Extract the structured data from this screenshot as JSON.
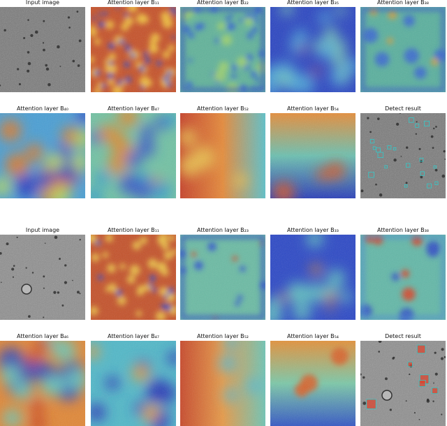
{
  "panels": [
    {
      "caption": "Input image"
    },
    {
      "caption": "Attention layer B₁₁"
    },
    {
      "caption": "Attention layer B₂₂"
    },
    {
      "caption": "Attention layer B₃₅"
    },
    {
      "caption": "Attention layer B₃₈"
    },
    {
      "caption": "Attention layer B₄₀"
    },
    {
      "caption": "Attention layer B₄₇"
    },
    {
      "caption": "Attention layer B₅₂"
    },
    {
      "caption": "Attention layer B₅₄"
    },
    {
      "caption": "Detect result"
    },
    {
      "caption": "Input image"
    },
    {
      "caption": "Attention layer B₁₁"
    },
    {
      "caption": "Attention layer B₂₃"
    },
    {
      "caption": "Attention layer B₃₃"
    },
    {
      "caption": "Attention layer B₃₈"
    },
    {
      "caption": "Attention layer B₄₆"
    },
    {
      "caption": "Attention layer B₄₇"
    },
    {
      "caption": "Attention layer B₅₂"
    },
    {
      "caption": "Attention layer B₅₄"
    },
    {
      "caption": "Detect result"
    }
  ]
}
